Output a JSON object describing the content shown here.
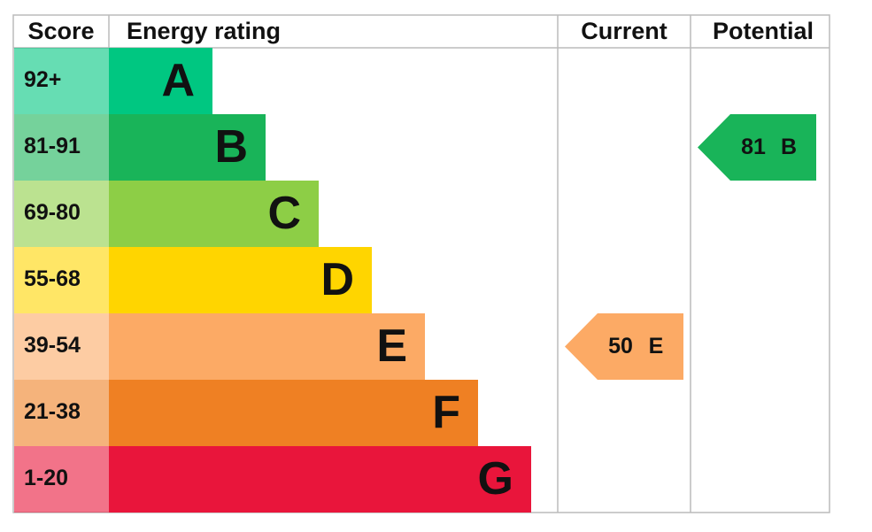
{
  "header": {
    "score": "Score",
    "rating": "Energy rating",
    "current": "Current",
    "potential": "Potential"
  },
  "bands": [
    {
      "score": "92+",
      "letter": "A",
      "color": "#00c781"
    },
    {
      "score": "81-91",
      "letter": "B",
      "color": "#19b459"
    },
    {
      "score": "69-80",
      "letter": "C",
      "color": "#8dce46"
    },
    {
      "score": "55-68",
      "letter": "D",
      "color": "#ffd500"
    },
    {
      "score": "39-54",
      "letter": "E",
      "color": "#fcaa65"
    },
    {
      "score": "21-38",
      "letter": "F",
      "color": "#ef8023"
    },
    {
      "score": "1-20",
      "letter": "G",
      "color": "#e9153b"
    }
  ],
  "current": {
    "value": "50",
    "letter": "E"
  },
  "potential": {
    "value": "81",
    "letter": "B"
  }
}
